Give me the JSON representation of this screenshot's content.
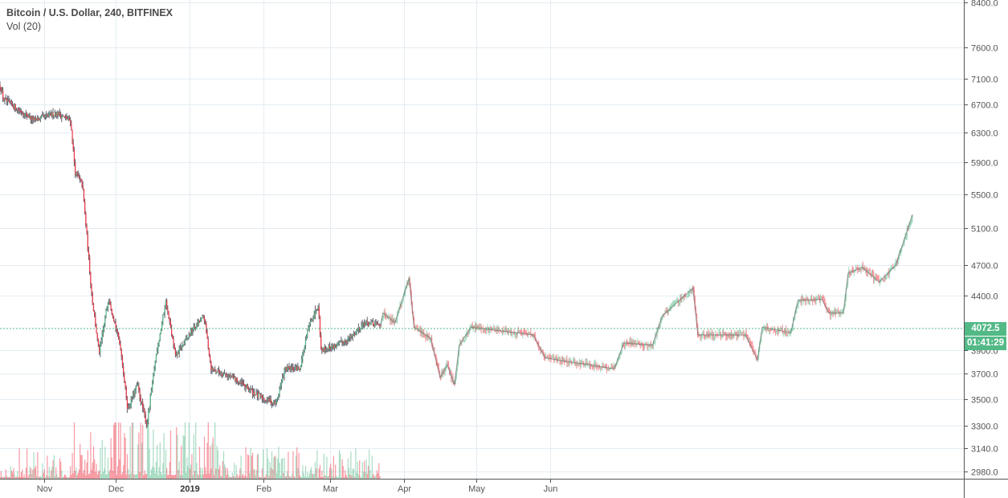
{
  "legend": {
    "title": "Bitcoin / U.S. Dollar, 240, BITFINEX",
    "volume": "Vol (20)"
  },
  "last_price": {
    "value": "4072.5",
    "price": 4072.5,
    "countdown": "01:41:29",
    "color": "#53b987"
  },
  "colors": {
    "up": "#53b987",
    "down": "#f23645",
    "wick": "#5d606b",
    "grid": "#e3edf3",
    "axis": "#555555"
  },
  "chart_data": {
    "type": "candlestick",
    "title": "Bitcoin / U.S. Dollar, 240, BITFINEX",
    "y_scale": "log",
    "ylim": [
      2980,
      8400
    ],
    "y_ticks": [
      "8400.0",
      "7600.0",
      "7100.0",
      "6700.0",
      "6300.0",
      "5900.0",
      "5500.0",
      "5100.0",
      "4700.0",
      "4400.0",
      "3900.0",
      "3700.0",
      "3500.0",
      "3300.0",
      "3140.0",
      "2980.0"
    ],
    "x_ticks": [
      {
        "label": "Nov",
        "date": "2018-11-01",
        "bold": false
      },
      {
        "label": "Dec",
        "date": "2018-12-01",
        "bold": false
      },
      {
        "label": "2019",
        "date": "2019-01-01",
        "bold": true
      },
      {
        "label": "Feb",
        "date": "2019-02-01",
        "bold": false
      },
      {
        "label": "Mar",
        "date": "2019-03-01",
        "bold": false
      },
      {
        "label": "Apr",
        "date": "2019-04-01",
        "bold": false
      },
      {
        "label": "May",
        "date": "2019-05-01",
        "bold": false
      },
      {
        "label": "Jun",
        "date": "2019-06-01",
        "bold": false
      }
    ],
    "grid": true,
    "price_path": [
      [
        "2018-10-13",
        7070
      ],
      [
        "2018-10-15",
        6780
      ],
      [
        "2018-10-28",
        6470
      ],
      [
        "2018-11-06",
        6580
      ],
      [
        "2018-11-12",
        6470
      ],
      [
        "2018-11-14",
        5770
      ],
      [
        "2018-11-17",
        5620
      ],
      [
        "2018-11-19",
        4960
      ],
      [
        "2018-11-21",
        4380
      ],
      [
        "2018-11-24",
        3870
      ],
      [
        "2018-11-28",
        4380
      ],
      [
        "2018-12-03",
        3920
      ],
      [
        "2018-12-06",
        3415
      ],
      [
        "2018-12-10",
        3610
      ],
      [
        "2018-12-14",
        3300
      ],
      [
        "2018-12-18",
        3870
      ],
      [
        "2018-12-22",
        4340
      ],
      [
        "2018-12-26",
        3840
      ],
      [
        "2019-01-02",
        4070
      ],
      [
        "2019-01-07",
        4200
      ],
      [
        "2019-01-10",
        3740
      ],
      [
        "2019-01-19",
        3670
      ],
      [
        "2019-01-29",
        3530
      ],
      [
        "2019-02-06",
        3460
      ],
      [
        "2019-02-10",
        3740
      ],
      [
        "2019-02-16",
        3740
      ],
      [
        "2019-02-20",
        4110
      ],
      [
        "2019-02-24",
        4320
      ],
      [
        "2019-02-25",
        3900
      ],
      [
        "2019-03-04",
        3940
      ],
      [
        "2019-03-10",
        4020
      ],
      [
        "2019-03-15",
        4140
      ],
      [
        "2019-03-22",
        4110
      ]
    ],
    "projection_path": [
      [
        "2019-03-22",
        4110
      ],
      [
        "2019-03-23",
        4230
      ],
      [
        "2019-03-28",
        4140
      ],
      [
        "2019-04-03",
        4570
      ],
      [
        "2019-04-05",
        4100
      ],
      [
        "2019-04-12",
        4000
      ],
      [
        "2019-04-16",
        3670
      ],
      [
        "2019-04-19",
        3770
      ],
      [
        "2019-04-22",
        3610
      ],
      [
        "2019-04-24",
        3940
      ],
      [
        "2019-04-29",
        4100
      ],
      [
        "2019-05-25",
        4030
      ],
      [
        "2019-05-30",
        3830
      ],
      [
        "2019-06-28",
        3740
      ],
      [
        "2019-07-02",
        3960
      ],
      [
        "2019-07-14",
        3940
      ],
      [
        "2019-07-18",
        4200
      ],
      [
        "2019-07-31",
        4470
      ],
      [
        "2019-08-02",
        4030
      ],
      [
        "2019-08-22",
        4030
      ],
      [
        "2019-08-27",
        3810
      ],
      [
        "2019-08-29",
        4100
      ],
      [
        "2019-09-10",
        4050
      ],
      [
        "2019-09-13",
        4350
      ],
      [
        "2019-09-23",
        4360
      ],
      [
        "2019-09-26",
        4230
      ],
      [
        "2019-10-02",
        4230
      ],
      [
        "2019-10-04",
        4620
      ],
      [
        "2019-10-10",
        4680
      ],
      [
        "2019-10-17",
        4530
      ],
      [
        "2019-10-24",
        4700
      ],
      [
        "2019-10-31",
        5260
      ]
    ]
  }
}
